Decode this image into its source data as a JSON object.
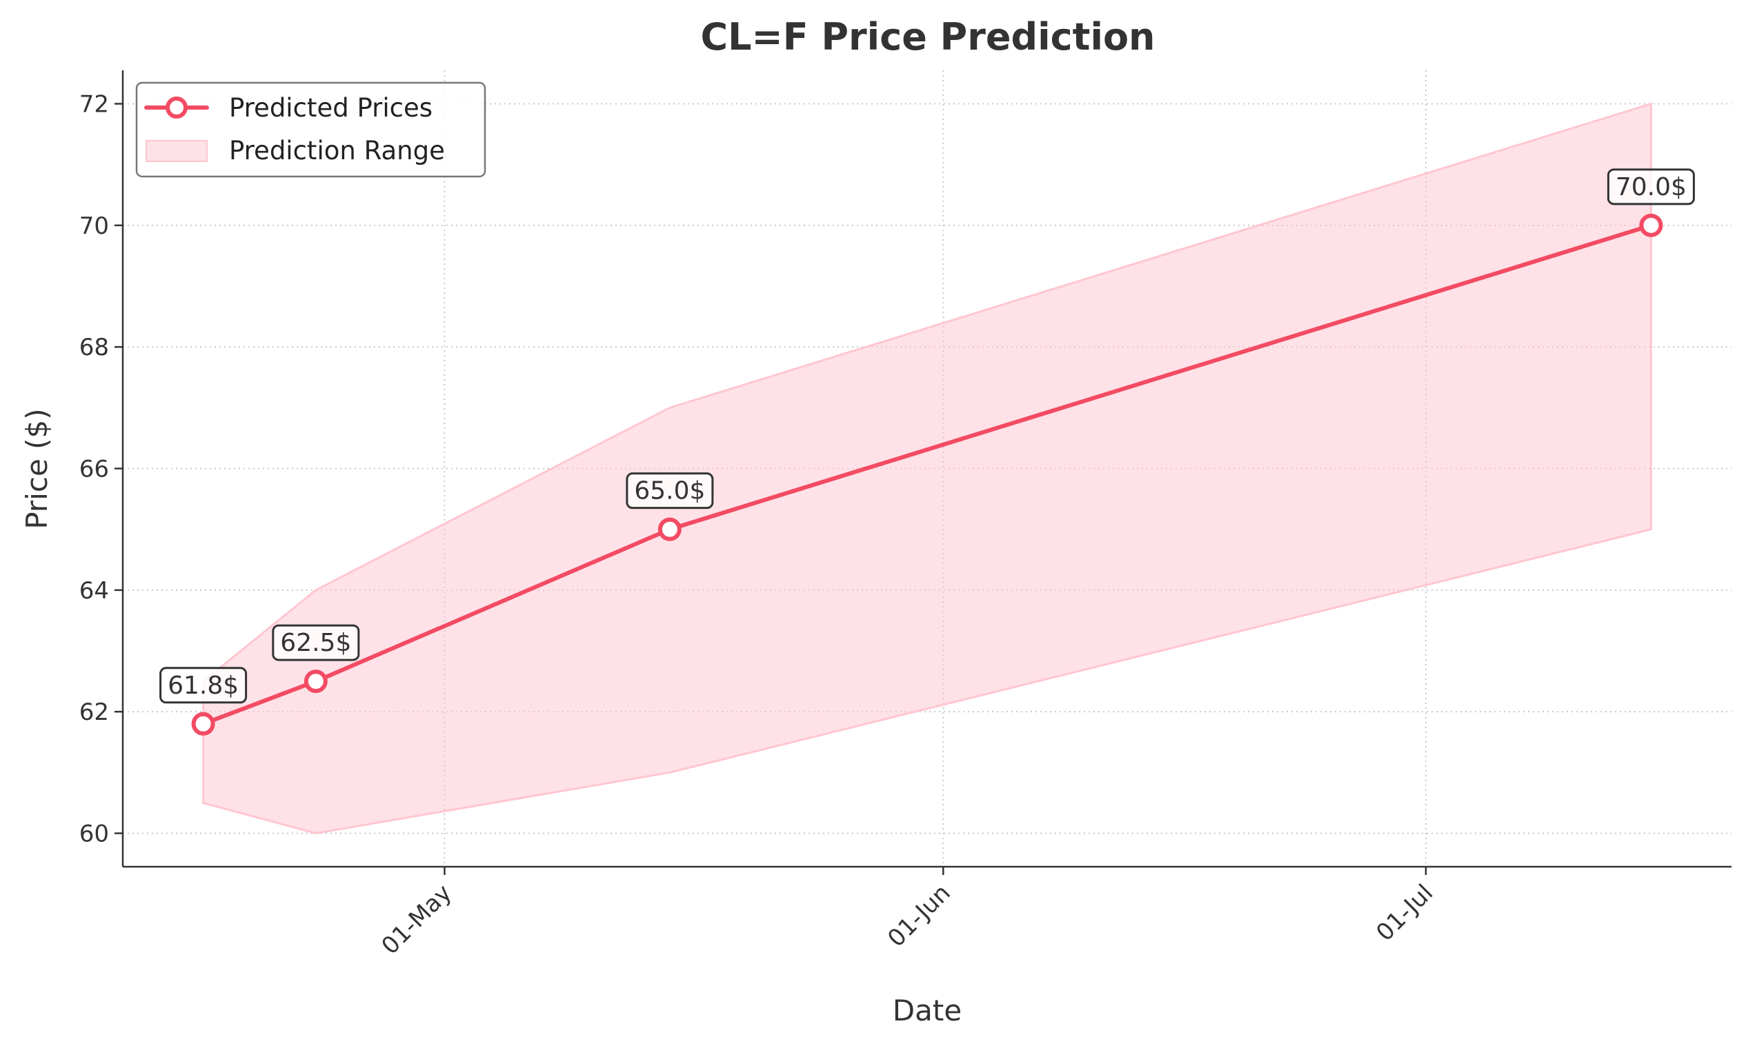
{
  "chart_data": {
    "type": "line",
    "title": "CL=F Price Prediction",
    "xlabel": "Date",
    "ylabel": "Price ($)",
    "x": [
      "2025-04-16",
      "2025-04-23",
      "2025-05-15",
      "2025-07-15"
    ],
    "series": [
      {
        "name": "Predicted Prices",
        "values": [
          61.8,
          62.5,
          65.0,
          70.0
        ],
        "color": "#f24b63",
        "marker": "circle-hollow"
      },
      {
        "name": "Prediction Range",
        "kind": "band",
        "lower": [
          60.5,
          60.0,
          61.0,
          65.0
        ],
        "upper": [
          62.5,
          64.0,
          67.0,
          72.0
        ],
        "color": "#ffc6d0"
      }
    ],
    "annotations": [
      "61.8$",
      "62.5$",
      "65.0$",
      "70.0$"
    ],
    "xlim": [
      "2025-04-11",
      "2025-07-20"
    ],
    "ylim": [
      59.45,
      72.55
    ],
    "x_ticks": [
      {
        "date": "2025-05-01",
        "label": "01-May"
      },
      {
        "date": "2025-06-01",
        "label": "01-Jun"
      },
      {
        "date": "2025-07-01",
        "label": "01-Jul"
      }
    ],
    "y_ticks": [
      60,
      62,
      64,
      66,
      68,
      70,
      72
    ],
    "grid": true,
    "legend_position": "upper-left"
  }
}
